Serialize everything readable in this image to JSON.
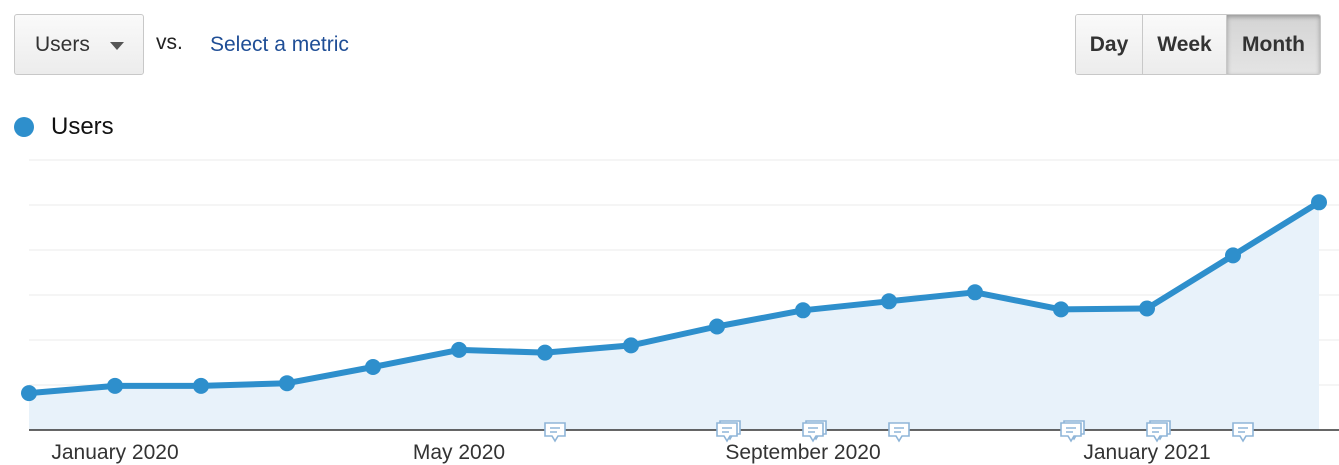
{
  "controls": {
    "metric": "Users",
    "vs": "vs.",
    "select_metric": "Select a metric",
    "granularity": [
      {
        "label": "Day",
        "active": false
      },
      {
        "label": "Week",
        "active": false
      },
      {
        "label": "Month",
        "active": true
      }
    ]
  },
  "colors": {
    "series": "#2e8fcc",
    "fill": "#e8f2fa",
    "grid": "#ebebeb",
    "axis": "#333333",
    "annotation": "#8fb5d8"
  },
  "chart_data": {
    "type": "area",
    "x": [
      "2019-12",
      "2020-01",
      "2020-02",
      "2020-03",
      "2020-04",
      "2020-05",
      "2020-06",
      "2020-07",
      "2020-08",
      "2020-09",
      "2020-10",
      "2020-11",
      "2020-12",
      "2021-01",
      "2021-02",
      "2021-03"
    ],
    "series": [
      {
        "name": "Users",
        "values": [
          8.2,
          9.8,
          9.8,
          10.4,
          14.0,
          17.8,
          17.2,
          18.8,
          23.0,
          26.6,
          28.6,
          30.6,
          26.8,
          27.0,
          38.8,
          50.6
        ]
      }
    ],
    "ylim": [
      0,
      60
    ],
    "y_ticks": [
      0,
      10,
      20,
      30,
      40,
      50,
      60
    ],
    "y_tick_labels_shown": false,
    "grid": true,
    "x_tick_labels": [
      {
        "label": "January 2020",
        "x": "2020-01"
      },
      {
        "label": "May 2020",
        "x": "2020-05"
      },
      {
        "label": "September 2020",
        "x": "2020-09"
      },
      {
        "label": "January 2021",
        "x": "2021-01"
      }
    ],
    "annotations": [
      {
        "x": "2020-06",
        "count": 1
      },
      {
        "x": "2020-08",
        "count": 2
      },
      {
        "x": "2020-09",
        "count": 2
      },
      {
        "x": "2020-10",
        "count": 1
      },
      {
        "x": "2020-12",
        "count": 2
      },
      {
        "x": "2021-01",
        "count": 2
      },
      {
        "x": "2021-02",
        "count": 1
      }
    ],
    "legend": "top-left",
    "title": "",
    "xlabel": "",
    "ylabel": ""
  }
}
